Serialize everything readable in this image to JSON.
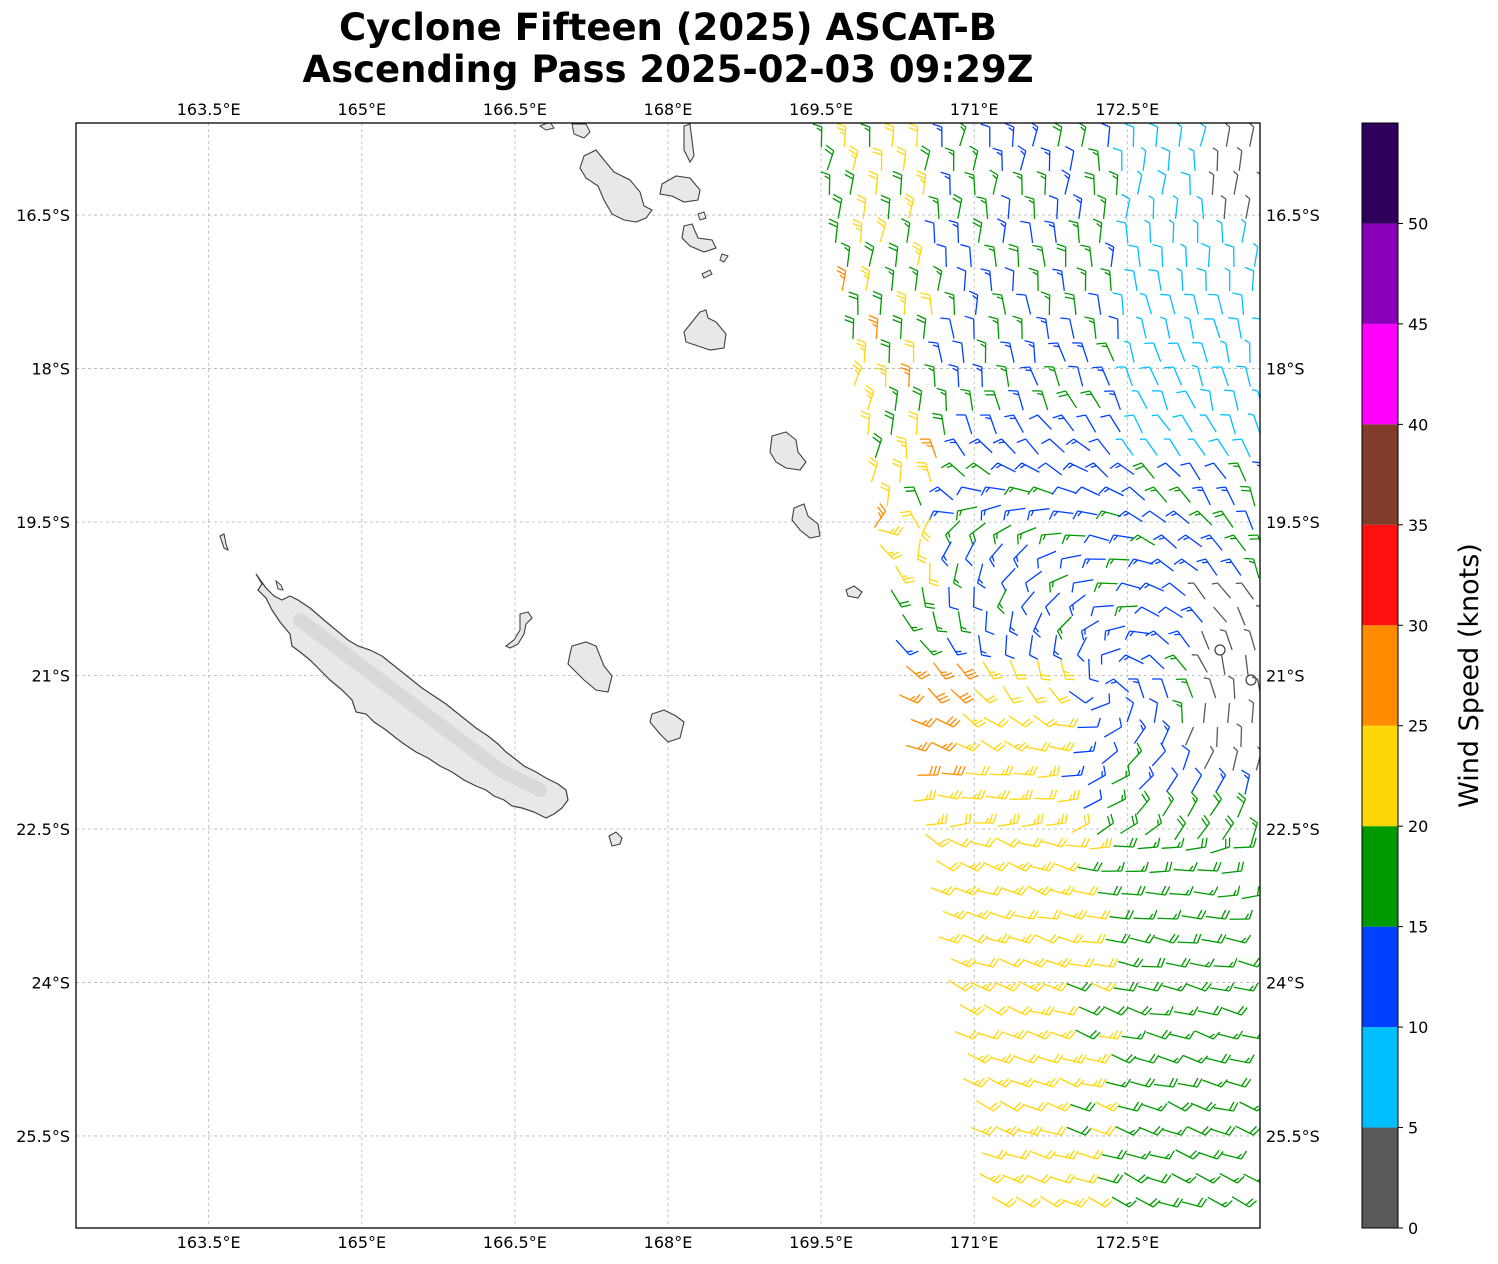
{
  "title": "Cyclone Fifteen (2025) ASCAT-B",
  "subtitle": "Ascending Pass 2025-02-03 09:29Z",
  "map": {
    "lon_min": 162.2,
    "lon_max": 173.8,
    "lat_min": -26.4,
    "lat_max": -15.6,
    "lon_ticks": [
      163.5,
      165,
      166.5,
      168,
      169.5,
      171,
      172.5
    ],
    "lon_tick_labels": [
      "163.5°E",
      "165°E",
      "166.5°E",
      "168°E",
      "169.5°E",
      "171°E",
      "172.5°E"
    ],
    "lat_ticks": [
      -16.5,
      -18,
      -19.5,
      -21,
      -22.5,
      -24,
      -25.5
    ],
    "lat_tick_labels": [
      "16.5°S",
      "18°S",
      "19.5°S",
      "21°S",
      "22.5°S",
      "24°S",
      "25.5°S"
    ],
    "gridlines": true,
    "land_fill": "#e6e6e6",
    "coast_color": "#404040"
  },
  "colorbar": {
    "label": "Wind Speed (knots)",
    "min": 0,
    "max": 55,
    "tick_values": [
      0,
      5,
      10,
      15,
      20,
      25,
      30,
      35,
      40,
      45,
      50
    ],
    "tick_labels": [
      "0",
      "5",
      "10",
      "15",
      "20",
      "25",
      "30",
      "35",
      "40",
      "45",
      "50"
    ],
    "bins": [
      {
        "from": 0,
        "to": 5,
        "color": "#595959"
      },
      {
        "from": 5,
        "to": 10,
        "color": "#00bfff"
      },
      {
        "from": 10,
        "to": 15,
        "color": "#0040ff"
      },
      {
        "from": 15,
        "to": 20,
        "color": "#009900"
      },
      {
        "from": 20,
        "to": 25,
        "color": "#ffd60a"
      },
      {
        "from": 25,
        "to": 30,
        "color": "#ff8c00"
      },
      {
        "from": 30,
        "to": 35,
        "color": "#ff1010"
      },
      {
        "from": 35,
        "to": 40,
        "color": "#803d29"
      },
      {
        "from": 40,
        "to": 45,
        "color": "#ff00ff"
      },
      {
        "from": 45,
        "to": 50,
        "color": "#8a00b8"
      },
      {
        "from": 50,
        "to": 55,
        "color": "#2e005c"
      }
    ]
  },
  "wind_field": {
    "swath_lon_west_north": 169.5,
    "swath_lon_west_south": 171.3,
    "swath_lon_east": 173.8,
    "low_center": {
      "lon": 172.3,
      "lat": -21.1
    },
    "circulation": "clockwise",
    "speed_regions": [
      {
        "region": "northeast",
        "speed_kt": "5-10"
      },
      {
        "region": "western edge 16.5-20.5S",
        "speed_kt": "15-25"
      },
      {
        "region": "southwest 21-26S",
        "speed_kt": "20-25"
      },
      {
        "region": "southeast 22-26S",
        "speed_kt": "15-20"
      },
      {
        "region": "far east 20.5-22S",
        "speed_kt": "0-5"
      }
    ]
  }
}
